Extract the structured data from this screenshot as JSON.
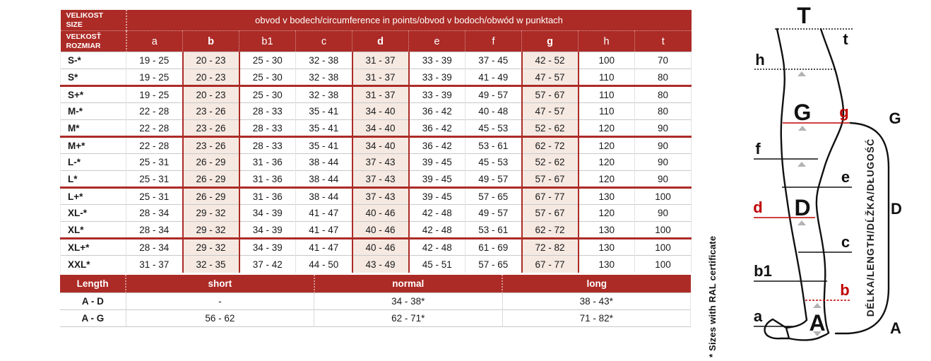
{
  "colors": {
    "header_red": "#AC2B26",
    "highlight_bg": "#F5E9E2",
    "red_accent": "#C00000",
    "triangle_gray": "#B3B3B3",
    "text_dark": "#1A1A1A"
  },
  "size_table": {
    "corner_line1": "VELIKOST",
    "corner_line2": "SIZE",
    "corner2_line1": "VEĽKOSŤ",
    "corner2_line2": "ROZMIAR",
    "span_header": "obvod v bodech/circumference in points/obvod v bodoch/obwód w punktach",
    "columns": [
      {
        "label": "a",
        "highlight": false
      },
      {
        "label": "b",
        "highlight": true
      },
      {
        "label": "b1",
        "highlight": false
      },
      {
        "label": "c",
        "highlight": false
      },
      {
        "label": "d",
        "highlight": true
      },
      {
        "label": "e",
        "highlight": false
      },
      {
        "label": "f",
        "highlight": false
      },
      {
        "label": "g",
        "highlight": true
      },
      {
        "label": "h",
        "highlight": false
      },
      {
        "label": "t",
        "highlight": false
      }
    ],
    "rows": [
      {
        "size": "S-*",
        "separator_before": false,
        "values": [
          "19 - 25",
          "20 - 23",
          "25 - 30",
          "32 - 38",
          "31 - 37",
          "33 - 39",
          "37 - 45",
          "42 - 52",
          "100",
          "70"
        ]
      },
      {
        "size": "S*",
        "separator_before": false,
        "values": [
          "19 - 25",
          "20 - 23",
          "25 - 30",
          "32 - 38",
          "31 - 37",
          "33 - 39",
          "41 - 49",
          "47 - 57",
          "110",
          "80"
        ]
      },
      {
        "size": "S+*",
        "separator_before": true,
        "values": [
          "19 - 25",
          "20 - 23",
          "25 - 30",
          "32 - 38",
          "31 - 37",
          "33 - 39",
          "49 - 57",
          "57 - 67",
          "110",
          "80"
        ]
      },
      {
        "size": "M-*",
        "separator_before": false,
        "values": [
          "22 - 28",
          "23 - 26",
          "28 - 33",
          "35 - 41",
          "34 - 40",
          "36 - 42",
          "40 - 48",
          "47 - 57",
          "110",
          "80"
        ]
      },
      {
        "size": "M*",
        "separator_before": false,
        "values": [
          "22 - 28",
          "23 - 26",
          "28 - 33",
          "35 - 41",
          "34 - 40",
          "36 - 42",
          "45 - 53",
          "52 - 62",
          "120",
          "90"
        ]
      },
      {
        "size": "M+*",
        "separator_before": true,
        "values": [
          "22 - 28",
          "23 - 26",
          "28 - 33",
          "35 - 41",
          "34 - 40",
          "36 - 42",
          "53 - 61",
          "62 - 72",
          "120",
          "90"
        ]
      },
      {
        "size": "L-*",
        "separator_before": false,
        "values": [
          "25 - 31",
          "26 - 29",
          "31 - 36",
          "38 - 44",
          "37 - 43",
          "39 - 45",
          "45 - 53",
          "52 - 62",
          "120",
          "90"
        ]
      },
      {
        "size": "L*",
        "separator_before": false,
        "values": [
          "25 - 31",
          "26 - 29",
          "31 - 36",
          "38 - 44",
          "37 - 43",
          "39 - 45",
          "49 - 57",
          "57 - 67",
          "120",
          "90"
        ]
      },
      {
        "size": "L+*",
        "separator_before": true,
        "values": [
          "25 - 31",
          "26 - 29",
          "31 - 36",
          "38 - 44",
          "37 - 43",
          "39 - 45",
          "57 - 65",
          "67 - 77",
          "130",
          "100"
        ]
      },
      {
        "size": "XL-*",
        "separator_before": false,
        "values": [
          "28 - 34",
          "29 - 32",
          "34 - 39",
          "41 - 47",
          "40 - 46",
          "42 - 48",
          "49 - 57",
          "57 - 67",
          "120",
          "90"
        ]
      },
      {
        "size": "XL*",
        "separator_before": false,
        "values": [
          "28 - 34",
          "29 - 32",
          "34 - 39",
          "41 - 47",
          "40 - 46",
          "42 - 48",
          "53 - 61",
          "62 - 72",
          "130",
          "100"
        ]
      },
      {
        "size": "XL+*",
        "separator_before": true,
        "values": [
          "28 - 34",
          "29 - 32",
          "34 - 39",
          "41 - 47",
          "40 - 46",
          "42 - 48",
          "61 - 69",
          "72 - 82",
          "130",
          "100"
        ]
      },
      {
        "size": "XXL*",
        "separator_before": false,
        "values": [
          "31 - 37",
          "32 - 35",
          "37 - 42",
          "44 - 50",
          "43 - 49",
          "45 - 51",
          "57 - 65",
          "67 - 77",
          "130",
          "100"
        ]
      }
    ]
  },
  "length_table": {
    "header": [
      "Length",
      "short",
      "normal",
      "long"
    ],
    "rows": [
      {
        "label": "A - D",
        "values": [
          "-",
          "34 - 38*",
          "38 - 43*"
        ]
      },
      {
        "label": "A - G",
        "values": [
          "56 - 62",
          "62 - 71*",
          "71 - 82*"
        ]
      }
    ]
  },
  "footnote": "* Sizes with RAL certificate",
  "diagram": {
    "label_T": "T",
    "label_t": "t",
    "label_h": "h",
    "label_G": "G",
    "label_g": "g",
    "label_G_right": "G",
    "label_f": "f",
    "label_e": "e",
    "label_d": "d",
    "label_D": "D",
    "label_D_right": "D",
    "label_c": "c",
    "label_b1": "b1",
    "label_b": "b",
    "label_a": "a",
    "label_A": "A",
    "label_A_right": "A",
    "length_axis": "DÉLKA/LENGTH/DĹŽKA/DŁUGOŚĆ"
  }
}
